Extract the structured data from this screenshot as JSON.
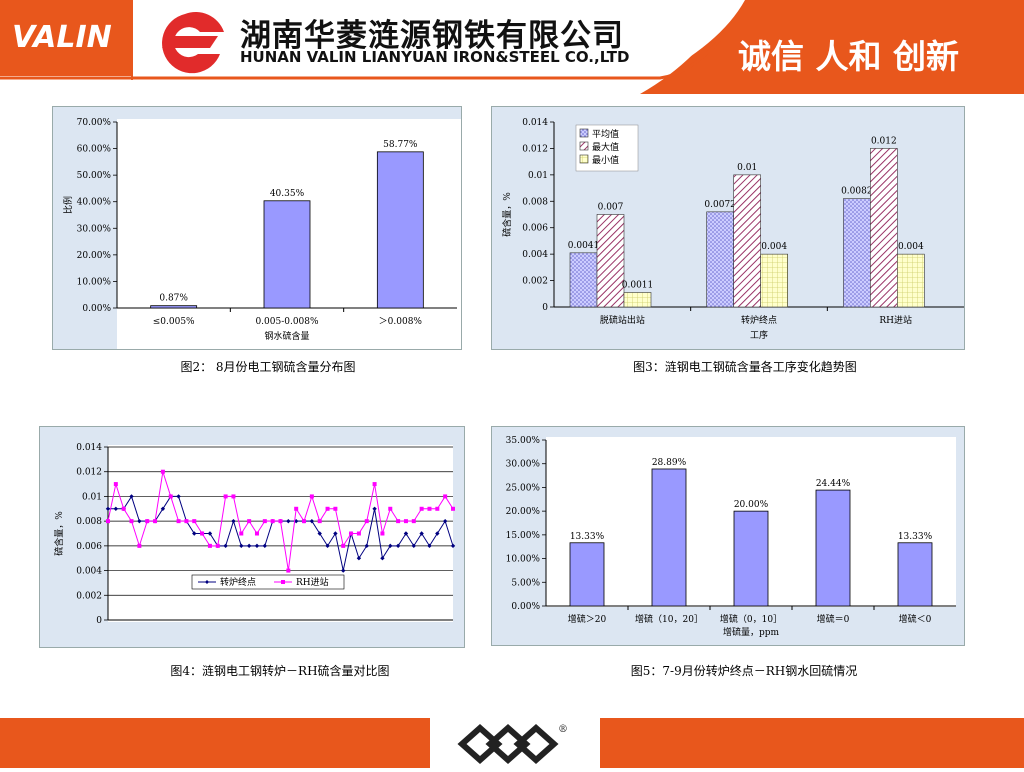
{
  "header": {
    "logo_text": "VALIN",
    "company_cn": "湖南华菱涟源钢铁有限公司",
    "company_en": "HUNAN VALIN LIANYUAN IRON&STEEL CO.,LTD",
    "slogan": "诚信 人和 创新"
  },
  "colors": {
    "brand_orange": "#E8571C",
    "panel_bg": "#DCE6F2",
    "bar_blue": "#9999FF",
    "line_navy": "#000080",
    "line_magenta": "#FF00FF"
  },
  "captions": {
    "fig2": "图2： 8月份电工钢硫含量分布图",
    "fig3": "图3：涟钢电工钢硫含量各工序变化趋势图",
    "fig4": "图4：涟钢电工钢转炉－RH硫含量对比图",
    "fig5": "图5：7-9月份转炉终点－RH钢水回硫情况"
  },
  "footer": {
    "logo_icon": "valin-diamond-logo-icon",
    "mark": "®"
  },
  "chart_data": [
    {
      "id": "fig2",
      "type": "bar",
      "categories": [
        "≤0.005%",
        "0.005-0.008%",
        "＞0.008%"
      ],
      "values": [
        0.87,
        40.35,
        58.77
      ],
      "value_labels": [
        "0.87%",
        "40.35%",
        "58.77%"
      ],
      "ylim": [
        0,
        70
      ],
      "yticks": [
        "0.00%",
        "10.00%",
        "20.00%",
        "30.00%",
        "40.00%",
        "50.00%",
        "60.00%",
        "70.00%"
      ],
      "xlabel": "钢水硫含量",
      "ylabel": "比例",
      "grid": false
    },
    {
      "id": "fig3",
      "type": "bar",
      "categories": [
        "脱硫站出站",
        "转炉终点",
        "RH进站"
      ],
      "series": [
        {
          "name": "平均值",
          "values": [
            0.0041,
            0.0072,
            0.0082
          ],
          "labels": [
            "0.0041",
            "0.0072",
            "0.0082"
          ]
        },
        {
          "name": "最大值",
          "values": [
            0.007,
            0.01,
            0.012
          ],
          "labels": [
            "0.007",
            "0.01",
            "0.012"
          ]
        },
        {
          "name": "最小值",
          "values": [
            0.0011,
            0.004,
            0.004
          ],
          "labels": [
            "0.0011",
            "0.004",
            "0.004"
          ]
        }
      ],
      "ylim": [
        0,
        0.014
      ],
      "yticks": [
        "0",
        "0.002",
        "0.004",
        "0.006",
        "0.008",
        "0.01",
        "0.012",
        "0.014"
      ],
      "xlabel": "工序",
      "ylabel": "硫含量，%",
      "legend": "top-left",
      "grid": false
    },
    {
      "id": "fig4",
      "type": "line",
      "series": [
        {
          "name": "转炉终点",
          "values": [
            0.009,
            0.009,
            0.009,
            0.01,
            0.008,
            0.008,
            0.008,
            0.009,
            0.01,
            0.01,
            0.008,
            0.007,
            0.007,
            0.007,
            0.006,
            0.006,
            0.008,
            0.006,
            0.006,
            0.006,
            0.006,
            0.008,
            0.008,
            0.008,
            0.008,
            0.008,
            0.008,
            0.007,
            0.006,
            0.007,
            0.004,
            0.007,
            0.005,
            0.006,
            0.009,
            0.005,
            0.006,
            0.006,
            0.007,
            0.006,
            0.007,
            0.006,
            0.007,
            0.008,
            0.006
          ]
        },
        {
          "name": "RH进站",
          "values": [
            0.008,
            0.011,
            0.009,
            0.008,
            0.006,
            0.008,
            0.008,
            0.012,
            0.01,
            0.008,
            0.008,
            0.008,
            0.007,
            0.006,
            0.006,
            0.01,
            0.01,
            0.007,
            0.008,
            0.007,
            0.008,
            0.008,
            0.008,
            0.004,
            0.009,
            0.008,
            0.01,
            0.008,
            0.009,
            0.009,
            0.006,
            0.007,
            0.007,
            0.008,
            0.011,
            0.007,
            0.009,
            0.008,
            0.008,
            0.008,
            0.009,
            0.009,
            0.009,
            0.01,
            0.009
          ]
        }
      ],
      "ylim": [
        0,
        0.014
      ],
      "yticks": [
        "0",
        "0.002",
        "0.004",
        "0.006",
        "0.008",
        "0.01",
        "0.012",
        "0.014"
      ],
      "ylabel": "硫含量，%",
      "legend": "bottom-center",
      "grid": true
    },
    {
      "id": "fig5",
      "type": "bar",
      "categories": [
        "增硫＞20",
        "增硫（10，20］",
        "增硫（0，10］",
        "增硫＝0",
        "增硫＜0"
      ],
      "values": [
        13.33,
        28.89,
        20.0,
        24.44,
        13.33
      ],
      "value_labels": [
        "13.33%",
        "28.89%",
        "20.00%",
        "24.44%",
        "13.33%"
      ],
      "ylim": [
        0,
        35
      ],
      "yticks": [
        "0.00%",
        "5.00%",
        "10.00%",
        "15.00%",
        "20.00%",
        "25.00%",
        "30.00%",
        "35.00%"
      ],
      "xlabel": "增硫量，ppm",
      "grid": false
    }
  ]
}
